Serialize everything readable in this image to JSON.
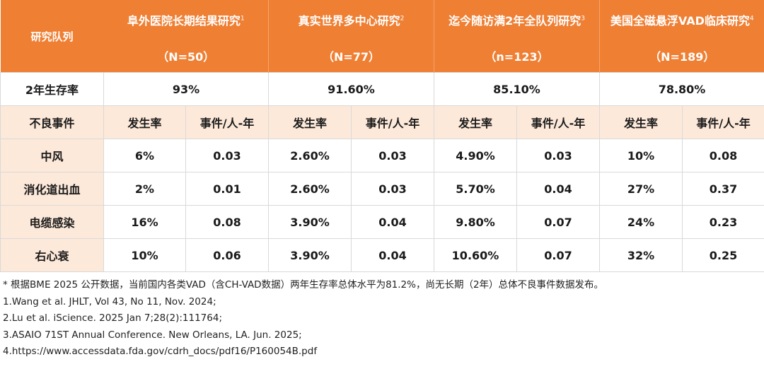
{
  "header": {
    "corner_label": "研究队列",
    "studies": [
      {
        "name": "阜外医院长期结果研究",
        "ref": "1",
        "n": "（N=50）"
      },
      {
        "name": "真实世界多中心研究",
        "ref": "2",
        "n": "（N=77）"
      },
      {
        "name": "迄今随访满2年全队列研究",
        "ref": "3",
        "n": "（n=123）"
      },
      {
        "name": "美国全磁悬浮VAD临床研究",
        "ref": "4",
        "n": "（N=189）"
      }
    ]
  },
  "survival": {
    "label": "2年生存率",
    "values": [
      "93%",
      "91.60%",
      "85.10%",
      "78.80%"
    ]
  },
  "subheader": {
    "label": "不良事件",
    "rate_label": "发生率",
    "per_label": "事件/人-年"
  },
  "events": [
    {
      "name": "中风",
      "cells": [
        "6%",
        "0.03",
        "2.60%",
        "0.03",
        "4.90%",
        "0.03",
        "10%",
        "0.08"
      ]
    },
    {
      "name": "消化道出血",
      "cells": [
        "2%",
        "0.01",
        "2.60%",
        "0.03",
        "5.70%",
        "0.04",
        "27%",
        "0.37"
      ]
    },
    {
      "name": "电缆感染",
      "cells": [
        "16%",
        "0.08",
        "3.90%",
        "0.04",
        "9.80%",
        "0.07",
        "24%",
        "0.23"
      ]
    },
    {
      "name": "右心衰",
      "cells": [
        "10%",
        "0.06",
        "3.90%",
        "0.04",
        "10.60%",
        "0.07",
        "32%",
        "0.25"
      ]
    }
  ],
  "notes": [
    "* 根据BME 2025 公开数据，当前国内各类VAD（含CH-VAD数据）两年生存率总体水平为81.2%，尚无长期（2年）总体不良事件数据发布。",
    "1.Wang et al. JHLT, Vol 43, No 11, Nov. 2024;",
    "2.Lu et al. iScience. 2025 Jan 7;28(2):111764;",
    "3.ASAIO 71ST Annual Conference. New Orleans, LA. Jun. 2025;",
    "4.https://www.accessdata.fda.gov/cdrh_docs/pdf16/P160054B.pdf"
  ]
}
